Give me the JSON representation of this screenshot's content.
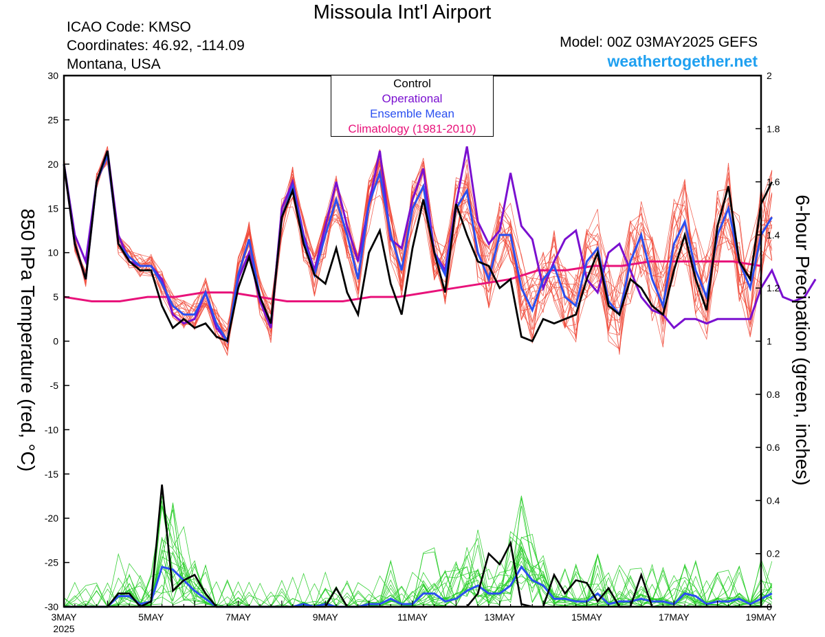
{
  "header": {
    "title": "Missoula Int'l Airport",
    "icao": "ICAO Code: KMSO",
    "coords": "Coordinates: 46.92, -114.09",
    "region": "Montana, USA",
    "model": "Model: 00Z 03MAY2025 GEFS",
    "site": "weathertogether.net"
  },
  "colors": {
    "control": "#000000",
    "operational": "#7a10d0",
    "ensemble_mean": "#2a4ff0",
    "climatology": "#e8127a",
    "temp_members": "#f04a3a",
    "precip_members": "#22cc22"
  },
  "chart_data": {
    "type": "line",
    "x_ticks": [
      {
        "day": 0,
        "label": "3MAY",
        "sub": "2025"
      },
      {
        "day": 2,
        "label": "5MAY"
      },
      {
        "day": 4,
        "label": "7MAY"
      },
      {
        "day": 6,
        "label": "9MAY"
      },
      {
        "day": 8,
        "label": "11MAY"
      },
      {
        "day": 10,
        "label": "13MAY"
      },
      {
        "day": 12,
        "label": "15MAY"
      },
      {
        "day": 14,
        "label": "17MAY"
      },
      {
        "day": 16,
        "label": "19MAY"
      }
    ],
    "xlim": [
      0,
      16
    ],
    "x_step_hours": 6,
    "y_left": {
      "label": "850 hPa Temperature (red, °C)",
      "lim": [
        -30,
        30
      ],
      "ticks": [
        "30",
        "25",
        "20",
        "15",
        "10",
        "5",
        "0",
        "-5",
        "-10",
        "-15",
        "-20",
        "-25",
        "-30"
      ]
    },
    "y_right": {
      "label": "6-hour Precipation (green, inches)",
      "lim": [
        0,
        2
      ],
      "ticks": [
        "2",
        "1.8",
        "1.6",
        "1.4",
        "1.2",
        "1",
        "0.8",
        "0.6",
        "0.4",
        "0.2",
        "0"
      ]
    },
    "legend": [
      "Control",
      "Operational",
      "Ensemble Mean",
      "Climatology (1981-2010)"
    ],
    "series": [
      {
        "name": "Control",
        "axis": "left",
        "values": [
          20,
          11,
          7,
          18,
          21.5,
          11,
          9,
          8,
          8,
          4,
          1.5,
          2.5,
          1.5,
          2,
          0.5,
          0,
          6,
          9.5,
          5,
          2,
          14,
          17,
          11,
          7.5,
          6.5,
          10.5,
          5.5,
          3,
          10,
          12.5,
          6.5,
          3,
          10.5,
          16,
          10,
          5.5,
          15.5,
          12,
          9,
          8.5,
          6,
          7,
          0.5,
          0,
          2.5,
          2,
          2.5,
          3,
          7,
          10,
          4,
          3,
          7,
          6,
          4,
          3,
          8,
          12,
          7,
          3.5,
          13,
          17.5,
          9,
          7,
          15.5,
          18
        ]
      },
      {
        "name": "Operational",
        "axis": "left",
        "values": [
          20,
          12,
          9,
          18,
          21.5,
          12,
          9,
          8.5,
          8.5,
          7,
          3,
          2,
          2.5,
          5.5,
          1.5,
          0,
          7,
          10,
          4.5,
          1.5,
          15,
          18,
          12,
          8,
          13,
          18,
          13,
          9,
          15.5,
          21.5,
          11.5,
          10.5,
          16,
          19.5,
          10,
          8,
          15.5,
          22,
          13.5,
          11,
          12.5,
          19,
          13,
          11.5,
          6,
          9,
          11.5,
          12.5,
          7,
          5.5,
          10,
          11,
          8,
          5,
          3.5,
          3,
          1.5,
          2.5,
          2.5,
          2,
          2.5,
          2.5,
          2.5,
          2.5,
          6,
          8,
          5,
          4.5,
          5,
          7
        ]
      },
      {
        "name": "Ensemble Mean",
        "axis": "left",
        "values": [
          20,
          11,
          7,
          18,
          21,
          11,
          9.5,
          8.5,
          8.5,
          6.5,
          4,
          3,
          3,
          5.5,
          2,
          0,
          7.5,
          11.5,
          5,
          2,
          14,
          17.5,
          11.5,
          7.5,
          12,
          16,
          12,
          7,
          15.5,
          19,
          12,
          8,
          15,
          17.5,
          10,
          7.5,
          15,
          17,
          10,
          7,
          12,
          12,
          6,
          3.5,
          7,
          8.5,
          5,
          4,
          9,
          10.5,
          4.5,
          3,
          9,
          12,
          7,
          4,
          11,
          13.5,
          8,
          5,
          12,
          15,
          9,
          6,
          12,
          14
        ]
      },
      {
        "name": "Climatology (1981-2010)",
        "axis": "left",
        "values": [
          5,
          4.5,
          4.5,
          5,
          5,
          5.5,
          5.5,
          5,
          4.5,
          4.5,
          4.5,
          5,
          5,
          5.5,
          6,
          6.5,
          7,
          8,
          8,
          8.5,
          8.5,
          9,
          9,
          9,
          9,
          8.5
        ]
      },
      {
        "name": "Control precip",
        "axis": "right",
        "values": [
          0,
          0,
          0,
          0,
          0,
          0.05,
          0.05,
          0,
          0.02,
          0.46,
          0.06,
          0.1,
          0.12,
          0.05,
          0,
          0,
          0,
          0,
          0,
          0,
          0,
          0,
          0,
          0,
          0,
          0.07,
          0,
          0,
          0,
          0,
          0,
          0,
          0,
          0,
          0,
          0,
          0,
          0,
          0.05,
          0.2,
          0.16,
          0.24,
          0.01,
          0,
          0,
          0.12,
          0.05,
          0.1,
          0.09,
          0.02,
          0.07,
          0,
          0,
          0.12,
          0,
          0,
          0,
          0,
          0,
          0,
          0,
          0,
          0,
          0,
          0,
          0
        ]
      },
      {
        "name": "Mean precip",
        "axis": "right",
        "values": [
          0,
          0,
          0,
          0,
          0,
          0.04,
          0.04,
          0.01,
          0.02,
          0.15,
          0.14,
          0.1,
          0.06,
          0.03,
          0,
          0,
          0,
          0,
          0,
          0,
          0,
          0,
          0.01,
          0,
          0.01,
          0,
          0,
          0,
          0.01,
          0.01,
          0.03,
          0.01,
          0.01,
          0.05,
          0.05,
          0.02,
          0.03,
          0.06,
          0.08,
          0.05,
          0.05,
          0.08,
          0.15,
          0.1,
          0.08,
          0.03,
          0.03,
          0.02,
          0.02,
          0.05,
          0.01,
          0.02,
          0.02,
          0.03,
          0.02,
          0.02,
          0.01,
          0.05,
          0.04,
          0.01,
          0.02,
          0.02,
          0.03,
          0.01,
          0.03,
          0.05
        ]
      }
    ]
  }
}
